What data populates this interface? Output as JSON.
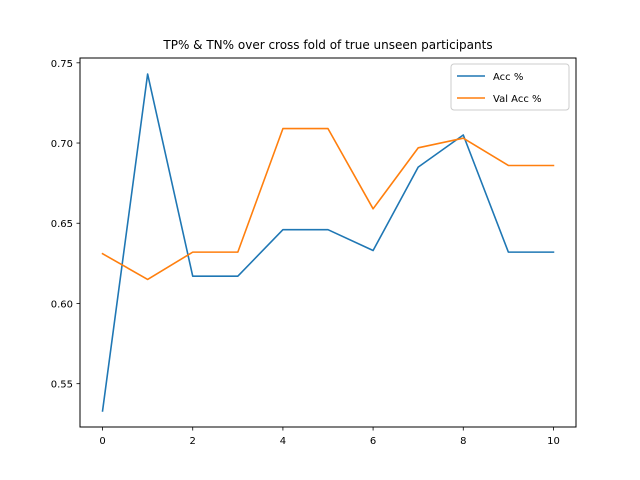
{
  "chart_data": {
    "type": "line",
    "title": "TP% & TN% over cross fold of true unseen participants",
    "xlabel": "",
    "ylabel": "",
    "x": [
      0,
      1,
      2,
      3,
      4,
      5,
      6,
      7,
      8,
      9,
      10
    ],
    "xticks": [
      "0",
      "2",
      "4",
      "6",
      "8",
      "10"
    ],
    "yticks": [
      "0.55",
      "0.60",
      "0.65",
      "0.70",
      "0.75"
    ],
    "xlim": [
      -0.5,
      10.5
    ],
    "ylim": [
      0.523,
      0.753
    ],
    "grid": false,
    "legend_position": "top-right",
    "series": [
      {
        "name": "Acc %",
        "color": "#1f77b4",
        "values": [
          0.533,
          0.743,
          0.617,
          0.617,
          0.646,
          0.646,
          0.633,
          0.685,
          0.705,
          0.632,
          0.632
        ]
      },
      {
        "name": "Val Acc %",
        "color": "#ff7f0e",
        "values": [
          0.631,
          0.615,
          0.632,
          0.632,
          0.709,
          0.709,
          0.659,
          0.697,
          0.703,
          0.686,
          0.686
        ]
      }
    ]
  }
}
